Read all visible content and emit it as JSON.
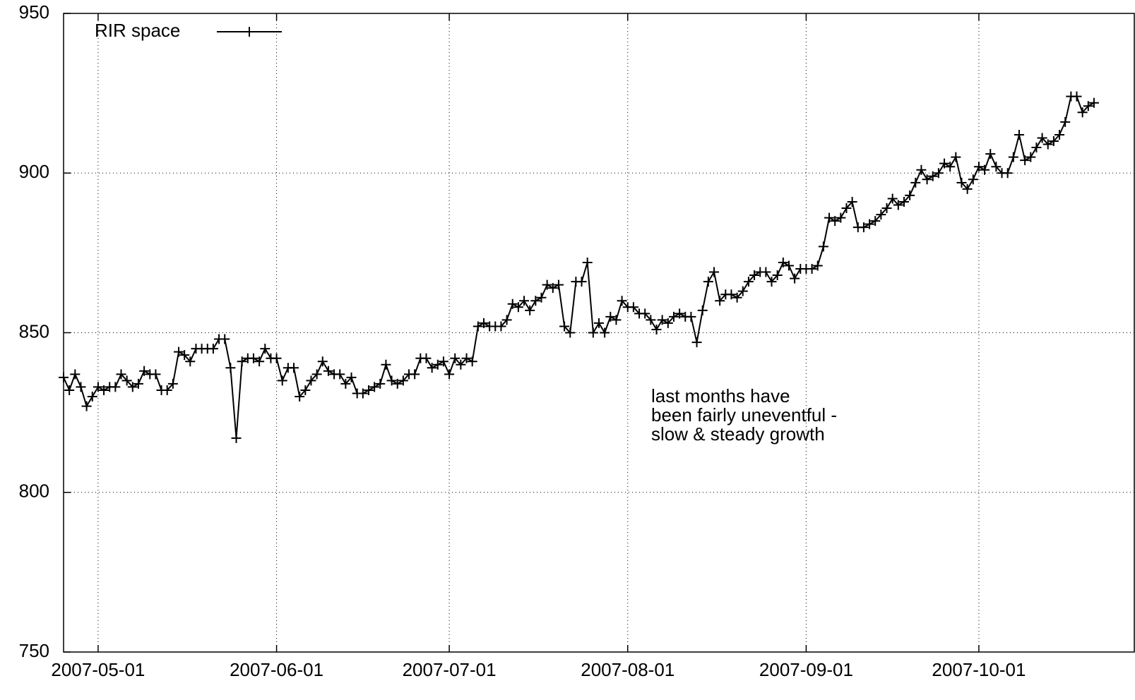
{
  "chart_data": {
    "type": "line",
    "x": [
      "2007-04-25",
      "2007-04-26",
      "2007-04-27",
      "2007-04-28",
      "2007-04-29",
      "2007-04-30",
      "2007-05-01",
      "2007-05-02",
      "2007-05-03",
      "2007-05-04",
      "2007-05-05",
      "2007-05-06",
      "2007-05-07",
      "2007-05-08",
      "2007-05-09",
      "2007-05-10",
      "2007-05-11",
      "2007-05-12",
      "2007-05-13",
      "2007-05-14",
      "2007-05-15",
      "2007-05-16",
      "2007-05-17",
      "2007-05-18",
      "2007-05-19",
      "2007-05-20",
      "2007-05-21",
      "2007-05-22",
      "2007-05-23",
      "2007-05-24",
      "2007-05-25",
      "2007-05-26",
      "2007-05-27",
      "2007-05-28",
      "2007-05-29",
      "2007-05-30",
      "2007-05-31",
      "2007-06-01",
      "2007-06-02",
      "2007-06-03",
      "2007-06-04",
      "2007-06-05",
      "2007-06-06",
      "2007-06-07",
      "2007-06-08",
      "2007-06-09",
      "2007-06-10",
      "2007-06-11",
      "2007-06-12",
      "2007-06-13",
      "2007-06-14",
      "2007-06-15",
      "2007-06-16",
      "2007-06-17",
      "2007-06-18",
      "2007-06-19",
      "2007-06-20",
      "2007-06-21",
      "2007-06-22",
      "2007-06-23",
      "2007-06-24",
      "2007-06-25",
      "2007-06-26",
      "2007-06-27",
      "2007-06-28",
      "2007-06-29",
      "2007-06-30",
      "2007-07-01",
      "2007-07-02",
      "2007-07-03",
      "2007-07-04",
      "2007-07-05",
      "2007-07-06",
      "2007-07-07",
      "2007-07-08",
      "2007-07-09",
      "2007-07-10",
      "2007-07-11",
      "2007-07-12",
      "2007-07-13",
      "2007-07-14",
      "2007-07-15",
      "2007-07-16",
      "2007-07-17",
      "2007-07-18",
      "2007-07-19",
      "2007-07-20",
      "2007-07-21",
      "2007-07-22",
      "2007-07-23",
      "2007-07-24",
      "2007-07-25",
      "2007-07-26",
      "2007-07-27",
      "2007-07-28",
      "2007-07-29",
      "2007-07-30",
      "2007-07-31",
      "2007-08-01",
      "2007-08-02",
      "2007-08-03",
      "2007-08-04",
      "2007-08-05",
      "2007-08-06",
      "2007-08-07",
      "2007-08-08",
      "2007-08-09",
      "2007-08-10",
      "2007-08-11",
      "2007-08-12",
      "2007-08-13",
      "2007-08-14",
      "2007-08-15",
      "2007-08-16",
      "2007-08-17",
      "2007-08-18",
      "2007-08-19",
      "2007-08-20",
      "2007-08-21",
      "2007-08-22",
      "2007-08-23",
      "2007-08-24",
      "2007-08-25",
      "2007-08-26",
      "2007-08-27",
      "2007-08-28",
      "2007-08-29",
      "2007-08-30",
      "2007-08-31",
      "2007-09-01",
      "2007-09-02",
      "2007-09-03",
      "2007-09-04",
      "2007-09-05",
      "2007-09-06",
      "2007-09-07",
      "2007-09-08",
      "2007-09-09",
      "2007-09-10",
      "2007-09-11",
      "2007-09-12",
      "2007-09-13",
      "2007-09-14",
      "2007-09-15",
      "2007-09-16",
      "2007-09-17",
      "2007-09-18",
      "2007-09-19",
      "2007-09-20",
      "2007-09-21",
      "2007-09-22",
      "2007-09-23",
      "2007-09-24",
      "2007-09-25",
      "2007-09-26",
      "2007-09-27",
      "2007-09-28",
      "2007-09-29",
      "2007-09-30",
      "2007-10-01",
      "2007-10-02",
      "2007-10-03",
      "2007-10-04",
      "2007-10-05",
      "2007-10-06",
      "2007-10-07",
      "2007-10-08",
      "2007-10-09",
      "2007-10-10",
      "2007-10-11",
      "2007-10-12",
      "2007-10-13",
      "2007-10-14",
      "2007-10-15",
      "2007-10-16",
      "2007-10-17",
      "2007-10-18",
      "2007-10-19",
      "2007-10-20",
      "2007-10-21"
    ],
    "series": [
      {
        "name": "RIR space",
        "color": "#000000",
        "values": [
          836,
          832,
          837,
          833,
          827,
          830,
          833,
          832,
          833,
          833,
          837,
          835,
          833,
          834,
          838,
          837,
          837,
          832,
          832,
          834,
          844,
          843,
          841,
          845,
          845,
          845,
          845,
          848,
          848,
          839,
          817,
          841,
          842,
          842,
          841,
          845,
          842,
          842,
          835,
          839,
          839,
          830,
          832,
          835,
          837,
          841,
          838,
          837,
          837,
          834,
          836,
          831,
          831,
          832,
          833,
          834,
          840,
          835,
          834,
          835,
          837,
          837,
          842,
          842,
          839,
          840,
          841,
          837,
          842,
          840,
          842,
          841,
          852,
          853,
          852,
          852,
          852,
          854,
          859,
          858,
          860,
          857,
          860,
          861,
          865,
          864,
          865,
          852,
          850,
          866,
          866,
          872,
          850,
          853,
          850,
          855,
          854,
          860,
          858,
          858,
          856,
          856,
          854,
          851,
          854,
          853,
          855,
          856,
          855,
          855,
          847,
          857,
          866,
          869,
          860,
          862,
          862,
          861,
          863,
          866,
          868,
          869,
          869,
          866,
          868,
          872,
          871,
          867,
          870,
          870,
          870,
          871,
          877,
          886,
          885,
          886,
          889,
          891,
          883,
          883,
          884,
          885,
          887,
          889,
          892,
          890,
          891,
          893,
          897,
          901,
          898,
          899,
          900,
          903,
          902,
          905,
          897,
          895,
          898,
          902,
          901,
          906,
          902,
          900,
          900,
          905,
          912,
          904,
          905,
          908,
          911,
          909,
          910,
          912,
          916,
          924,
          924,
          919,
          921,
          922
        ]
      }
    ],
    "xlim": [
      "2007-04-25",
      "2007-10-28"
    ],
    "xticks": [
      "2007-05-01",
      "2007-06-01",
      "2007-07-01",
      "2007-08-01",
      "2007-09-01",
      "2007-10-01"
    ],
    "ylim": [
      750,
      950
    ],
    "yticks": [
      750,
      800,
      850,
      900,
      950
    ],
    "grid": true,
    "legend": "top-left",
    "annotation": [
      "last months have",
      "been fairly uneventful -",
      "slow & steady growth"
    ]
  }
}
